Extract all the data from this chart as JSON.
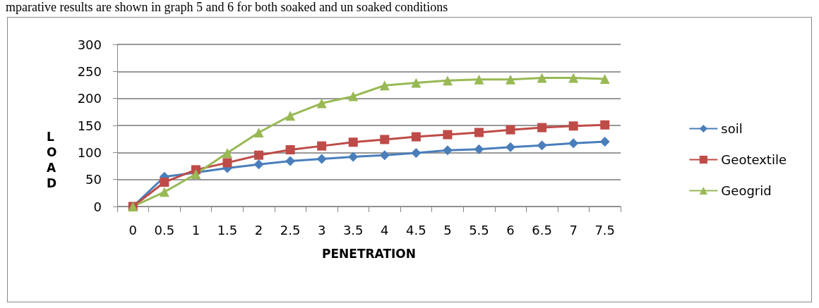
{
  "chart_data": {
    "type": "line",
    "xlabel": "PENETRATION",
    "ylabel": "LOAD",
    "annotations": [
      "mparative results are shown in graph 5 and 6 for both soaked and un soaked conditions"
    ],
    "categories": [
      "0",
      "0.5",
      "1",
      "1.5",
      "2",
      "2.5",
      "3",
      "3.5",
      "4",
      "4.5",
      "5",
      "5.5",
      "6",
      "6.5",
      "7",
      "7.5"
    ],
    "series": [
      {
        "name": "soil",
        "color": "#4a7ebb",
        "marker": "diamond",
        "values": [
          0,
          55,
          63,
          71,
          78,
          84,
          88,
          92,
          95,
          99,
          104,
          106,
          110,
          113,
          117,
          120
        ]
      },
      {
        "name": "Geotextile",
        "color": "#be4b48",
        "marker": "square",
        "values": [
          0,
          45,
          68,
          81,
          95,
          105,
          112,
          119,
          124,
          129,
          133,
          137,
          142,
          146,
          149,
          151
        ]
      },
      {
        "name": "Geogrid",
        "color": "#98b954",
        "marker": "triangle",
        "values": [
          0,
          27,
          60,
          99,
          137,
          168,
          191,
          204,
          224,
          229,
          233,
          235,
          235,
          238,
          238,
          236
        ]
      }
    ],
    "ylim": [
      0,
      300
    ],
    "yticks": [
      0,
      50,
      100,
      150,
      200,
      250,
      300
    ],
    "grid": "y",
    "legend": "right",
    "line_style": "solid"
  }
}
